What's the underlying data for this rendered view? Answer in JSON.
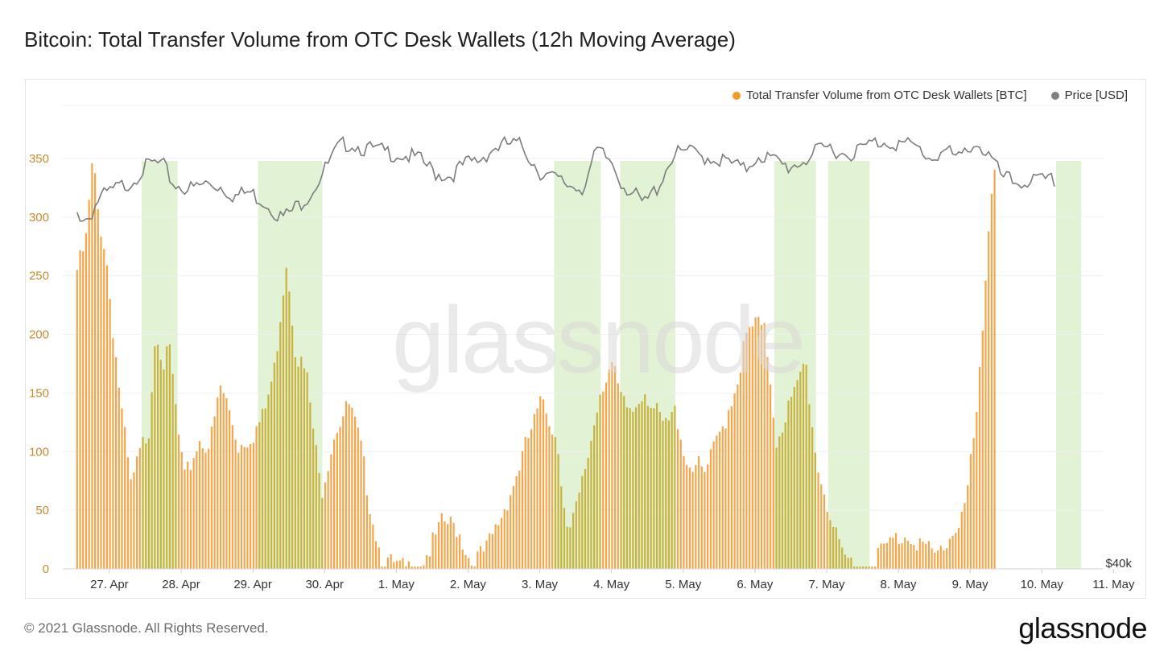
{
  "header": {
    "title": "Bitcoin: Total Transfer Volume from OTC Desk Wallets (12h Moving Average)"
  },
  "legend": [
    {
      "label": "Total Transfer Volume from OTC Desk Wallets [BTC]",
      "color": "#f09a2c"
    },
    {
      "label": "Price [USD]",
      "color": "#808080"
    }
  ],
  "watermark": "glassnode",
  "footer": {
    "copyright": "© 2021 Glassnode. All Rights Reserved.",
    "brand": "glassnode"
  },
  "colors": {
    "bar": "#f5a64a",
    "bar_highlight": "#c9b340",
    "price_line": "#7c7c7c",
    "highlight_band": "#e2f2d4",
    "axis_label": "#c88a2e",
    "grid": "#efefef"
  },
  "chart_data": {
    "type": "bar",
    "title": "Bitcoin: Total Transfer Volume from OTC Desk Wallets (12h Moving Average)",
    "x_tick_labels": [
      "27. Apr",
      "28. Apr",
      "29. Apr",
      "30. Apr",
      "1. May",
      "2. May",
      "3. May",
      "4. May",
      "5. May",
      "6. May",
      "7. May",
      "8. May",
      "9. May",
      "10. May",
      "11. May"
    ],
    "y_tick_labels": [
      "0",
      "50",
      "100",
      "150",
      "200",
      "250",
      "300",
      "350"
    ],
    "ylim": [
      0,
      400
    ],
    "right_axis_label": "$40k",
    "grid": true,
    "legend_position": "top-right",
    "x_range_days": [
      -0.2,
      14.3
    ],
    "highlight_ranges_days": [
      [
        0.9,
        1.4
      ],
      [
        2.52,
        3.42
      ],
      [
        6.65,
        7.3
      ],
      [
        7.57,
        8.34
      ],
      [
        9.72,
        10.3
      ],
      [
        10.47,
        11.05
      ],
      [
        13.65,
        14.0
      ]
    ],
    "series": [
      {
        "name": "Total Transfer Volume from OTC Desk Wallets [BTC]",
        "axis": "left",
        "unit": "BTC",
        "step_hours": 1,
        "start_day": 0,
        "keypoints": [
          [
            0,
            260
          ],
          [
            0.12,
            282
          ],
          [
            0.22,
            355
          ],
          [
            0.3,
            305
          ],
          [
            0.4,
            275
          ],
          [
            0.5,
            210
          ],
          [
            0.62,
            140
          ],
          [
            0.75,
            75
          ],
          [
            0.9,
            108
          ],
          [
            1.0,
            125
          ],
          [
            1.1,
            215
          ],
          [
            1.2,
            180
          ],
          [
            1.3,
            190
          ],
          [
            1.4,
            125
          ],
          [
            1.5,
            80
          ],
          [
            1.7,
            115
          ],
          [
            1.85,
            110
          ],
          [
            2.0,
            160
          ],
          [
            2.1,
            145
          ],
          [
            2.25,
            110
          ],
          [
            2.45,
            120
          ],
          [
            2.6,
            135
          ],
          [
            2.75,
            175
          ],
          [
            2.92,
            270
          ],
          [
            3.05,
            190
          ],
          [
            3.2,
            170
          ],
          [
            3.4,
            70
          ],
          [
            3.6,
            125
          ],
          [
            3.8,
            145
          ],
          [
            3.95,
            110
          ],
          [
            4.1,
            55
          ],
          [
            4.25,
            12
          ],
          [
            4.5,
            5
          ],
          [
            4.75,
            5
          ],
          [
            4.95,
            25
          ],
          [
            5.1,
            45
          ],
          [
            5.3,
            40
          ],
          [
            5.5,
            10
          ],
          [
            5.7,
            20
          ],
          [
            5.9,
            48
          ],
          [
            6.1,
            80
          ],
          [
            6.3,
            118
          ],
          [
            6.5,
            150
          ],
          [
            6.7,
            112
          ],
          [
            6.85,
            30
          ],
          [
            7.0,
            65
          ],
          [
            7.15,
            110
          ],
          [
            7.3,
            160
          ],
          [
            7.45,
            180
          ],
          [
            7.6,
            145
          ],
          [
            7.75,
            140
          ],
          [
            7.9,
            160
          ],
          [
            8.05,
            140
          ],
          [
            8.2,
            125
          ],
          [
            8.35,
            140
          ],
          [
            8.5,
            95
          ],
          [
            8.62,
            95
          ],
          [
            8.75,
            85
          ],
          [
            8.9,
            110
          ],
          [
            9.05,
            135
          ],
          [
            9.2,
            165
          ],
          [
            9.32,
            200
          ],
          [
            9.45,
            215
          ],
          [
            9.6,
            205
          ],
          [
            9.75,
            115
          ],
          [
            9.9,
            140
          ],
          [
            10.05,
            160
          ],
          [
            10.15,
            185
          ],
          [
            10.3,
            100
          ],
          [
            10.5,
            50
          ],
          [
            10.65,
            15
          ],
          [
            10.85,
            10
          ],
          [
            11.05,
            5
          ],
          [
            11.2,
            20
          ],
          [
            11.4,
            30
          ],
          [
            11.6,
            35
          ],
          [
            11.8,
            25
          ],
          [
            11.95,
            15
          ],
          [
            12.1,
            25
          ],
          [
            12.25,
            40
          ],
          [
            12.4,
            65
          ],
          [
            12.55,
            140
          ],
          [
            12.65,
            225
          ],
          [
            12.72,
            310
          ],
          [
            12.78,
            355
          ],
          [
            12.82,
            345
          ]
        ]
      },
      {
        "name": "Price [USD]",
        "axis": "right",
        "unit": "USD",
        "step_hours": 2,
        "start_day": 0,
        "keypoints": [
          [
            0,
            53600
          ],
          [
            0.15,
            53200
          ],
          [
            0.3,
            54600
          ],
          [
            0.5,
            55200
          ],
          [
            0.75,
            55800
          ],
          [
            0.9,
            56600
          ],
          [
            1.05,
            57100
          ],
          [
            1.2,
            56900
          ],
          [
            1.35,
            55600
          ],
          [
            1.6,
            55300
          ],
          [
            1.8,
            55700
          ],
          [
            2.0,
            55500
          ],
          [
            2.2,
            54800
          ],
          [
            2.4,
            55100
          ],
          [
            2.65,
            54300
          ],
          [
            2.85,
            53300
          ],
          [
            3.0,
            53800
          ],
          [
            3.25,
            55000
          ],
          [
            3.45,
            56600
          ],
          [
            3.65,
            58200
          ],
          [
            3.8,
            58500
          ],
          [
            4.0,
            58100
          ],
          [
            4.25,
            57900
          ],
          [
            4.5,
            57700
          ],
          [
            4.75,
            57400
          ],
          [
            5.0,
            56400
          ],
          [
            5.2,
            56200
          ],
          [
            5.4,
            57000
          ],
          [
            5.6,
            57300
          ],
          [
            5.8,
            58100
          ],
          [
            6.0,
            58400
          ],
          [
            6.2,
            58300
          ],
          [
            6.45,
            56500
          ],
          [
            6.65,
            56000
          ],
          [
            6.85,
            55600
          ],
          [
            7.05,
            55400
          ],
          [
            7.25,
            57900
          ],
          [
            7.45,
            57200
          ],
          [
            7.6,
            55700
          ],
          [
            7.75,
            55000
          ],
          [
            7.9,
            54200
          ],
          [
            8.1,
            55500
          ],
          [
            8.3,
            57600
          ],
          [
            8.5,
            57900
          ],
          [
            8.7,
            57600
          ],
          [
            8.9,
            57400
          ],
          [
            9.1,
            57100
          ],
          [
            9.3,
            56600
          ],
          [
            9.5,
            57700
          ],
          [
            9.7,
            57300
          ],
          [
            9.9,
            56800
          ],
          [
            10.1,
            57200
          ],
          [
            10.3,
            57800
          ],
          [
            10.5,
            58200
          ],
          [
            10.7,
            57700
          ],
          [
            10.9,
            58000
          ],
          [
            11.1,
            58500
          ],
          [
            11.3,
            58600
          ],
          [
            11.5,
            58400
          ],
          [
            11.7,
            58200
          ],
          [
            11.9,
            57400
          ],
          [
            12.1,
            58000
          ],
          [
            12.3,
            57300
          ],
          [
            12.5,
            58600
          ],
          [
            12.7,
            57700
          ],
          [
            12.9,
            56100
          ],
          [
            13.1,
            55700
          ],
          [
            13.3,
            55900
          ],
          [
            13.5,
            55800
          ],
          [
            13.65,
            55900
          ]
        ]
      }
    ]
  }
}
